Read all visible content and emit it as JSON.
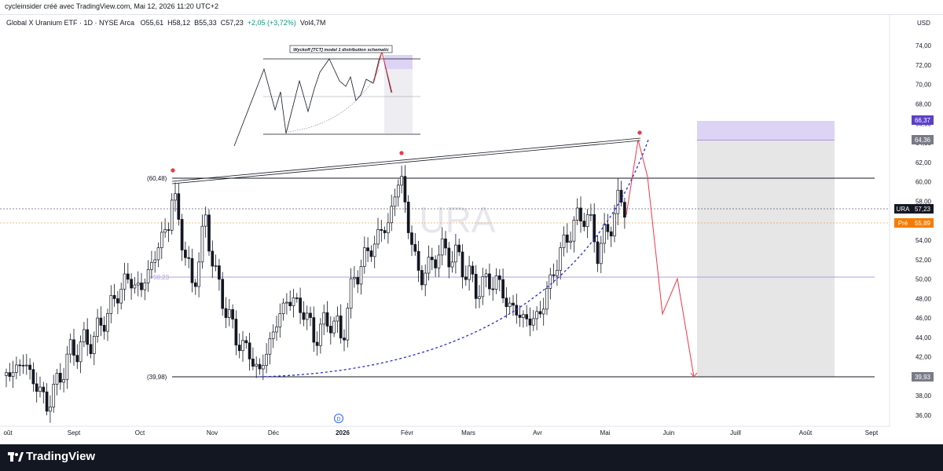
{
  "header": {
    "attribution": "cycleinsider créé avec TradingView.com, Mai 12, 2026 11:20 UTC+2"
  },
  "legend": {
    "symbol": "Global X Uranium ETF · 1D · NYSE Arca",
    "open": "O55,61",
    "high": "H58,12",
    "low": "B55,33",
    "close": "C57,23",
    "change": "+2,05 (+3,72%)",
    "volume": "Vol4,7M"
  },
  "footer": {
    "brand": "TradingView"
  },
  "chart_data": {
    "type": "candlestick",
    "ticker_watermark": "URA",
    "currency_label": "USD",
    "y_axis": {
      "range": [
        35,
        76
      ],
      "ticks": [
        "36,00",
        "38,00",
        "40,00",
        "42,00",
        "44,00",
        "46,00",
        "48,00",
        "50,00",
        "52,00",
        "54,00",
        "56,00",
        "58,00",
        "60,00",
        "62,00",
        "64,00",
        "66,00",
        "68,00",
        "70,00",
        "72,00",
        "74,00"
      ]
    },
    "x_axis": {
      "labels": [
        "oût",
        "Sept",
        "Oct",
        "Nov",
        "Déc",
        "2026",
        "Févr",
        "Mars",
        "Avr",
        "Mai",
        "Juin",
        "Juill",
        "Août",
        "Sept"
      ]
    },
    "last_price": {
      "symbol": "URA",
      "value": "57,23",
      "color": "#131722"
    },
    "premarket": {
      "label": "Pré",
      "value": "55,89",
      "color": "#f57c00"
    },
    "price_badges": [
      {
        "value": "66,37",
        "color": "#5b3fc9"
      },
      {
        "value": "64,36",
        "color": "#787b86"
      },
      {
        "value": "39,93",
        "color": "#787b86"
      }
    ],
    "levels": [
      {
        "label": "(60,48)",
        "value": 60.48
      },
      {
        "label": "(39,98)",
        "value": 39.98
      },
      {
        "label": "50,23",
        "value": 50.23
      }
    ],
    "dividend_marker": "D",
    "schematic": {
      "title": "Wyckoff [TCT] model 1 distribution schematic"
    },
    "series_colors": {
      "up": "#131722",
      "down": "#131722",
      "projection": "#f23645",
      "curve": "#2a2ad8",
      "target_box": "#e6e6e6",
      "stop_box": "#ddd3f5"
    }
  }
}
